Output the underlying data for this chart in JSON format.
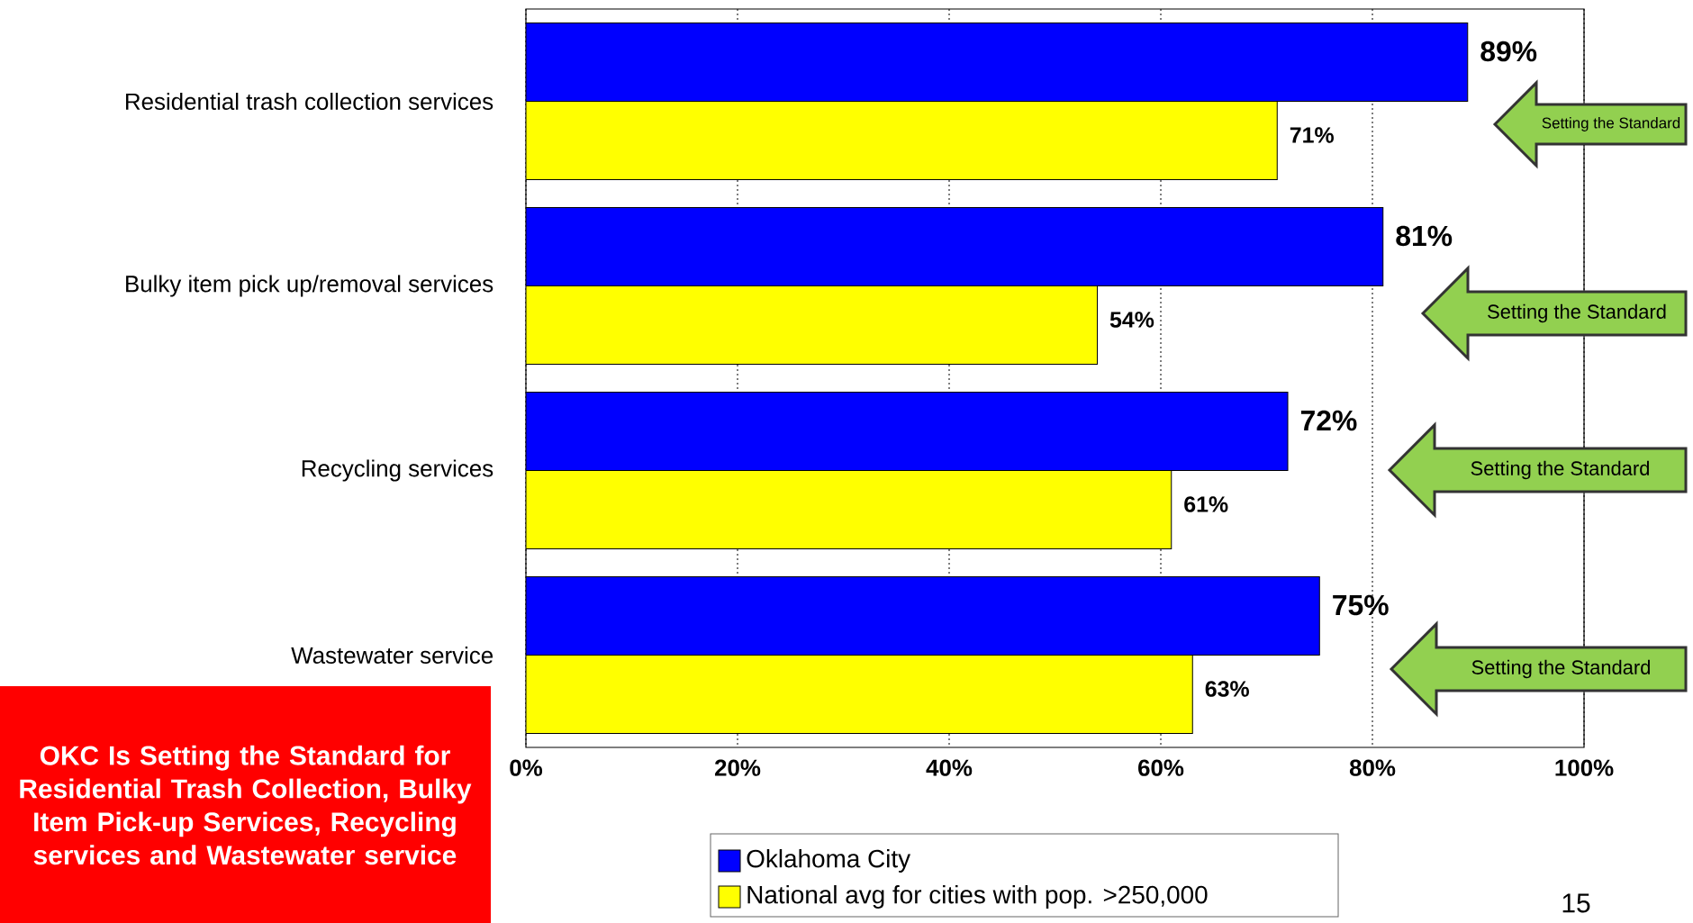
{
  "chart_data": {
    "type": "bar",
    "orientation": "horizontal",
    "categories": [
      "Residential trash collection services",
      "Bulky item pick up/removal services",
      "Recycling services",
      "Wastewater service"
    ],
    "series": [
      {
        "name": "Oklahoma City",
        "color": "#0000ff",
        "values": [
          89,
          81,
          72,
          75
        ],
        "value_labels": [
          "89%",
          "81%",
          "72%",
          "75%"
        ]
      },
      {
        "name": "National avg for cities with pop. >250,000",
        "color": "#ffff00",
        "values": [
          71,
          54,
          61,
          63
        ],
        "value_labels": [
          "71%",
          "54%",
          "61%",
          "63%"
        ]
      }
    ],
    "xlim": [
      0,
      100
    ],
    "xticks": [
      {
        "value": 0,
        "label": "0%"
      },
      {
        "value": 20,
        "label": "20%"
      },
      {
        "value": 40,
        "label": "40%"
      },
      {
        "value": 60,
        "label": "60%"
      },
      {
        "value": 80,
        "label": "80%"
      },
      {
        "value": 100,
        "label": "100%"
      }
    ],
    "grid": "x",
    "legend": "bottom",
    "annotations": [
      "Setting the Standard",
      "Setting the Standard",
      "Setting the Standard",
      "Setting the Standard",
      "OKC Is Setting the Standard for Residential Trash Collection, Bulky Item Pick-up Services, Recycling services and Wastewater service",
      "15"
    ]
  }
}
